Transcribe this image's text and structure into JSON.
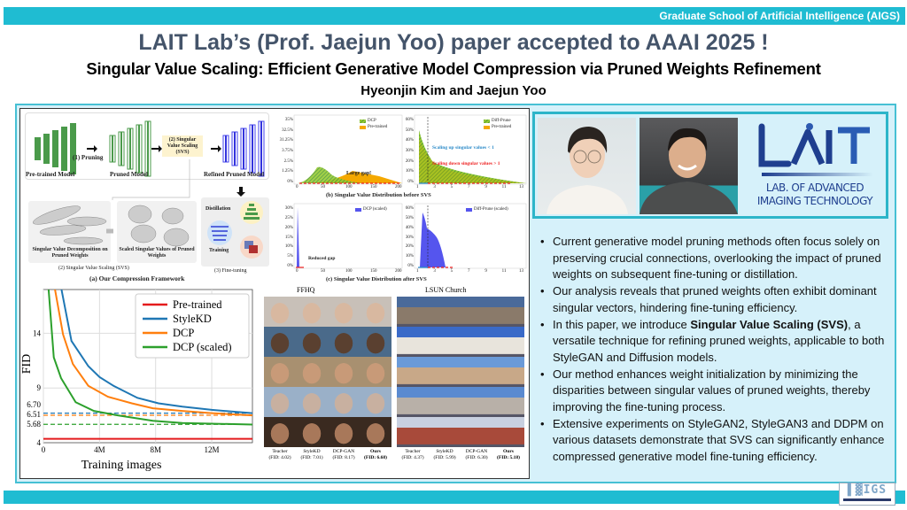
{
  "header": {
    "institution": "Graduate School of Artificial Intelligence (AIGS)",
    "title": "LAIT Lab’s (Prof. Jaejun Yoo) paper accepted to AAAI 2025 !",
    "subtitle": "Singular Value Scaling: Efficient Generative Model Compression via Pruned Weights Refinement",
    "authors": "Hyeonjin Kim and Jaejun Yoo"
  },
  "framework": {
    "pretrained": "Pre-trained Model",
    "pruning": "(1) Pruning",
    "pruned": "Pruned Model",
    "svs_box": "(2) Singular Value Scaling (SVS)",
    "refined": "Refined Pruned Model",
    "svd": "Singular Value Decomposition on Pruned Weights",
    "scaled": "Scaled Singular Values of Pruned Weights",
    "svs_caption": "(2) Singular Value Scaling (SVS)",
    "distillation": "Distillation",
    "training": "Training",
    "finetune": "(3) Fine-tuning",
    "caption": "(a) Our Compression Framework"
  },
  "histograms": {
    "before_caption": "(b) Singular Value Distribution before SVS",
    "after_caption": "(c) Singular Value Distribution after SVS",
    "tl": {
      "legend": [
        "DCP",
        "Pre-trained"
      ],
      "yticks": [
        "35%",
        "32.5%",
        "31.25%",
        "3.75%",
        "2.5%",
        "1.25%",
        "0%"
      ],
      "xticks": [
        "0",
        "50",
        "100",
        "150",
        "200"
      ],
      "annotation": "Large gap!"
    },
    "tr": {
      "legend": [
        "Diff-Prune",
        "Pre-trained"
      ],
      "yticks": [
        "60%",
        "50%",
        "40%",
        "30%",
        "20%",
        "10%",
        "0%"
      ],
      "xticks": [
        "1",
        "3",
        "5",
        "7",
        "9",
        "11",
        "13"
      ],
      "annotation_up": "Scaling up singular values < 1",
      "annotation_down": "Scaling down singular values > 1"
    },
    "bl": {
      "legend": [
        "DCP (scaled)"
      ],
      "yticks": [
        "30%",
        "25%",
        "20%",
        "15%",
        "10%",
        "5%",
        "0%"
      ],
      "xticks": [
        "0",
        "50",
        "100",
        "150",
        "200"
      ],
      "annotation": "Reduced gap"
    },
    "br": {
      "legend": [
        "Diff-Prune (scaled)"
      ],
      "yticks": [
        "60%",
        "50%",
        "40%",
        "30%",
        "20%",
        "10%",
        "0%"
      ],
      "xticks": [
        "1",
        "3",
        "5",
        "7",
        "9",
        "11",
        "13"
      ]
    }
  },
  "chart_data": {
    "type": "line",
    "xlabel": "Training images",
    "ylabel": "FID",
    "xlim": [
      0,
      14.9
    ],
    "ylim": [
      4,
      18
    ],
    "xticks": [
      "0",
      "4M",
      "8M",
      "12M"
    ],
    "xtick_values": [
      0,
      4,
      8,
      12
    ],
    "yticks": [
      "4",
      "5.68",
      "6.51",
      "6.70",
      "9",
      "14"
    ],
    "ytick_values": [
      4,
      5.68,
      6.51,
      6.7,
      9,
      14
    ],
    "legend_position": "top-right",
    "grid": true,
    "series": [
      {
        "name": "Pre-trained",
        "color": "#e41a1c",
        "x": [
          0,
          14.9
        ],
        "y": [
          4.35,
          4.35
        ]
      },
      {
        "name": "StyleKD",
        "color": "#1f77b4",
        "x": [
          1.26,
          2,
          3.2,
          4,
          5,
          6.7,
          8.2,
          9.9,
          12,
          14.9
        ],
        "y": [
          18.2,
          13.3,
          11,
          10,
          9.2,
          8.1,
          7.6,
          7.3,
          7.0,
          6.7
        ],
        "final": 6.7
      },
      {
        "name": "DCP",
        "color": "#ff7f0e",
        "x": [
          0.8,
          1.4,
          2.1,
          3.2,
          4.6,
          6.3,
          7.8,
          9.9,
          12,
          14.9
        ],
        "y": [
          18.2,
          13.9,
          11.2,
          9.2,
          8.2,
          7.6,
          7.15,
          6.9,
          6.7,
          6.5
        ],
        "final": 6.51
      },
      {
        "name": "DCP (scaled)",
        "color": "#2ca02c",
        "x": [
          0.36,
          0.74,
          1.26,
          2.3,
          3.6,
          5.3,
          7.8,
          9.9,
          14.9
        ],
        "y": [
          18.2,
          11.8,
          9.9,
          7.7,
          6.9,
          6.5,
          6.0,
          5.8,
          5.66
        ],
        "final": 5.68
      }
    ]
  },
  "samples": {
    "ffhq": "FFHQ",
    "lsun": "LSUN Church",
    "labels": [
      {
        "name": "Teacher",
        "fid": "(FID: 4.02)"
      },
      {
        "name": "StyleKD",
        "fid": "(FID: 7.01)"
      },
      {
        "name": "DCP-GAN",
        "fid": "(FID: 8.17)"
      },
      {
        "name": "Ours",
        "fid": "(FID: 6.68)",
        "bold": true
      },
      {
        "name": "Teacher",
        "fid": "(FID: 4.37)"
      },
      {
        "name": "StyleKD",
        "fid": "(FID: 5.99)"
      },
      {
        "name": "DCP-GAN",
        "fid": "(FID: 6.30)"
      },
      {
        "name": "Ours",
        "fid": "(FID: 5.18)",
        "bold": true
      }
    ]
  },
  "logo": {
    "mark": "LAIT",
    "line1": "LAB. OF ADVANCED",
    "line2": "IMAGING TECHNOLOGY"
  },
  "bullets": [
    {
      "pre": "Current generative model pruning methods often focus solely on preserving crucial connections, overlooking the impact of pruned weights on subsequent fine-tuning or distillation.",
      "bold": "",
      "post": ""
    },
    {
      "pre": "Our analysis reveals that pruned weights often exhibit dominant singular vectors, hindering fine-tuning efficiency.",
      "bold": "",
      "post": ""
    },
    {
      "pre": "In this paper, we introduce ",
      "bold": "Singular Value Scaling (SVS)",
      "post": ", a versatile technique for refining pruned weights, applicable to both StyleGAN and Diffusion models."
    },
    {
      "pre": "Our method enhances weight initialization by minimizing the disparities between singular values of pruned weights, thereby improving the fine-tuning process.",
      "bold": "",
      "post": ""
    },
    {
      "pre": "Extensive experiments on StyleGAN2, StyleGAN3 and DDPM on various datasets demonstrate that SVS can significantly enhance compressed generative model fine-tuning efficiency.",
      "bold": "",
      "post": ""
    }
  ],
  "footer_logo": "AIGS",
  "colors": {
    "teal": "#1fbcd2",
    "panel": "#d6f1fa",
    "title": "#44546a",
    "logo_blue": "#1f3f8f"
  }
}
